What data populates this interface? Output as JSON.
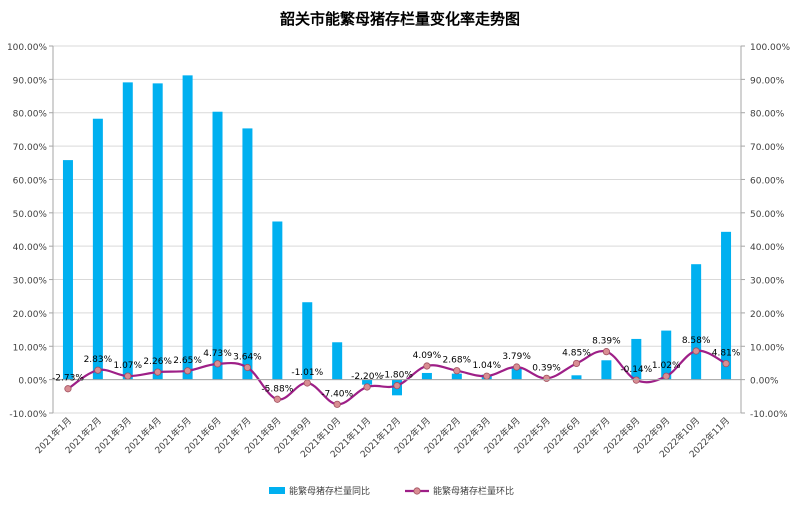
{
  "chart_data": {
    "type": "bar",
    "title": "韶关市能繁母猪存栏量变化率走势图",
    "categories": [
      "2021年1月",
      "2021年2月",
      "2021年3月",
      "2021年4月",
      "2021年5月",
      "2021年6月",
      "2021年7月",
      "2021年8月",
      "2021年9月",
      "2021年10月",
      "2021年11月",
      "2021年12月",
      "2022年1月",
      "2022年2月",
      "2022年3月",
      "2022年4月",
      "2022年5月",
      "2022年6月",
      "2022年7月",
      "2022年8月",
      "2022年9月",
      "2022年10月",
      "2022年11月"
    ],
    "series": [
      {
        "name": "能繁母猪存栏量同比",
        "type": "bar",
        "axis": "left",
        "color": "#00B0F0",
        "values": [
          65.8,
          78.2,
          89.1,
          88.8,
          91.2,
          80.3,
          75.3,
          47.4,
          23.2,
          11.2,
          -1.5,
          -4.7,
          2.0,
          1.8,
          1.5,
          3.4,
          0.1,
          1.3,
          5.8,
          12.2,
          14.7,
          34.6,
          44.3
        ]
      },
      {
        "name": "能繁母猪存栏量环比",
        "type": "line",
        "axis": "right",
        "color": "#9E1F87",
        "marker_color": "#D98E93",
        "values": [
          -2.73,
          2.83,
          1.07,
          2.26,
          2.65,
          4.73,
          3.64,
          -5.88,
          -1.01,
          -7.4,
          -2.2,
          -1.8,
          4.09,
          2.68,
          1.04,
          3.79,
          0.39,
          4.85,
          8.39,
          -0.14,
          1.02,
          8.58,
          4.81
        ],
        "labels": [
          "-2.73%",
          "2.83%",
          "1.07%",
          "2.26%",
          "2.65%",
          "4.73%",
          "3.64%",
          "-5.88%",
          "-1.01%",
          "-7.40%",
          "-2.20%",
          "-1.80%",
          "4.09%",
          "2.68%",
          "1.04%",
          "3.79%",
          "0.39%",
          "4.85%",
          "8.39%",
          "-0.14%",
          "1.02%",
          "8.58%",
          "4.81%"
        ]
      }
    ],
    "ylim_left": [
      -10,
      100
    ],
    "ylim_right": [
      -10,
      100
    ],
    "yticks": [
      -10,
      0,
      10,
      20,
      30,
      40,
      50,
      60,
      70,
      80,
      90,
      100
    ],
    "ytick_labels": [
      "-10.00%",
      "0.00%",
      "10.00%",
      "20.00%",
      "30.00%",
      "40.00%",
      "50.00%",
      "60.00%",
      "70.00%",
      "80.00%",
      "90.00%",
      "100.00%"
    ],
    "grid": true,
    "legend_position": "bottom"
  }
}
